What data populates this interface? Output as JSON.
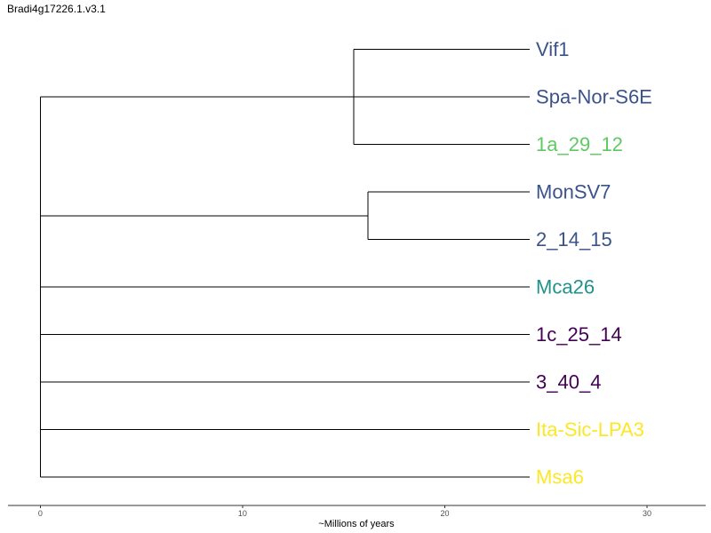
{
  "chart_data": {
    "type": "dendrogram",
    "title": "Bradi4g17226.1.v3.1",
    "xlabel": "~Millions of years",
    "xlim": [
      -1.6,
      32.9
    ],
    "xticks": [
      0,
      10,
      20,
      30
    ],
    "grid": false,
    "leaves": [
      {
        "label": "Vif1",
        "color": "#3b528b"
      },
      {
        "label": "Spa-Nor-S6E",
        "color": "#3b528b"
      },
      {
        "label": "1a_29_12",
        "color": "#5ec962"
      },
      {
        "label": "MonSV7",
        "color": "#3b528b"
      },
      {
        "label": "2_14_15",
        "color": "#3b528b"
      },
      {
        "label": "Mca26",
        "color": "#21918c"
      },
      {
        "label": "1c_25_14",
        "color": "#440154"
      },
      {
        "label": "3_40_4",
        "color": "#440154"
      },
      {
        "label": "Ita-Sic-LPA3",
        "color": "#fde725"
      },
      {
        "label": "Msa6",
        "color": "#fde725"
      }
    ],
    "tree": {
      "height": 24.2,
      "children": [
        {
          "height": 8.7,
          "children": [
            {
              "leaf": 0
            },
            {
              "leaf": 1
            },
            {
              "leaf": 2
            }
          ]
        },
        {
          "height": 8.0,
          "children": [
            {
              "leaf": 3
            },
            {
              "leaf": 4
            }
          ]
        },
        {
          "leaf": 5
        },
        {
          "leaf": 6
        },
        {
          "leaf": 7
        },
        {
          "leaf": 8
        },
        {
          "leaf": 9
        }
      ]
    }
  }
}
